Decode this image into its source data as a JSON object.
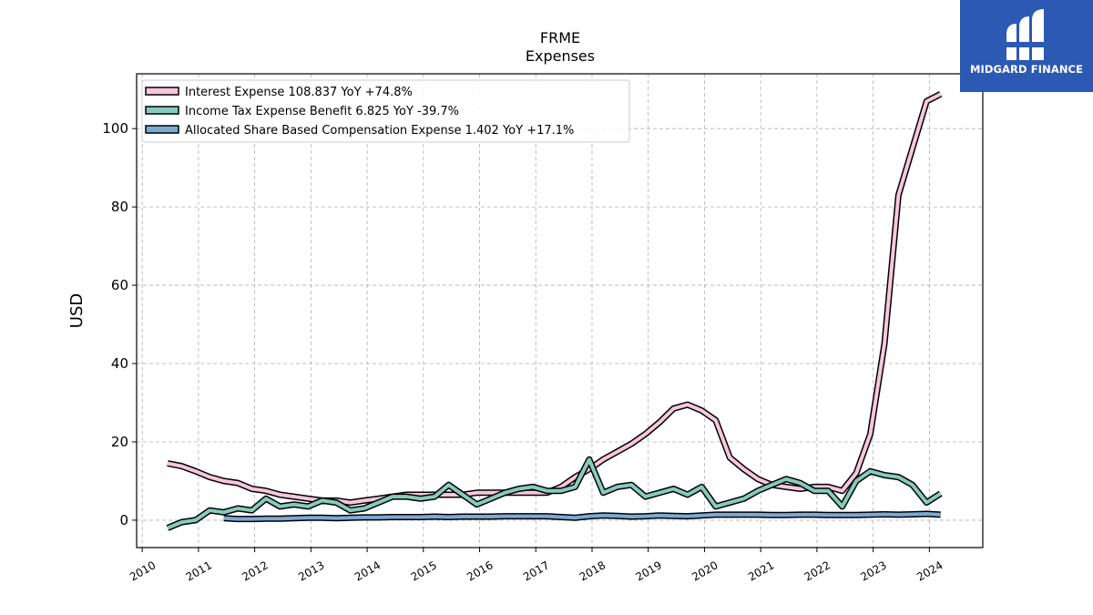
{
  "chart_data": {
    "type": "line",
    "title": "FRME",
    "subtitle": "Expenses",
    "xlabel": "",
    "ylabel": "USD",
    "xlim": [
      2009.9,
      2024.95
    ],
    "ylim": [
      -7,
      114
    ],
    "x_ticks": [
      "2010",
      "2011",
      "2012",
      "2013",
      "2014",
      "2015",
      "2016",
      "2017",
      "2018",
      "2019",
      "2020",
      "2021",
      "2022",
      "2023",
      "2024"
    ],
    "y_ticks": [
      0,
      20,
      40,
      60,
      80,
      100
    ],
    "grid": true,
    "legend_position": "top-left",
    "series": [
      {
        "name": "Interest Expense",
        "legend": "Interest Expense  108.837 YoY +74.8%",
        "color": "#f9c6dc",
        "x": [
          2010.45,
          2010.7,
          2010.95,
          2011.2,
          2011.45,
          2011.7,
          2011.95,
          2012.2,
          2012.45,
          2012.7,
          2012.95,
          2013.2,
          2013.45,
          2013.7,
          2013.95,
          2014.2,
          2014.45,
          2014.7,
          2014.95,
          2015.2,
          2015.45,
          2015.7,
          2015.95,
          2016.2,
          2016.45,
          2016.7,
          2016.95,
          2017.2,
          2017.45,
          2017.7,
          2017.95,
          2018.2,
          2018.45,
          2018.7,
          2018.95,
          2019.2,
          2019.45,
          2019.7,
          2019.95,
          2020.2,
          2020.45,
          2020.7,
          2020.95,
          2021.2,
          2021.45,
          2021.7,
          2021.95,
          2022.2,
          2022.45,
          2022.7,
          2022.95,
          2023.2,
          2023.45,
          2023.7,
          2023.95,
          2024.2
        ],
        "values": [
          14.5,
          13.8,
          12.5,
          11,
          10,
          9.5,
          8,
          7.5,
          6.5,
          6,
          5.5,
          5,
          5,
          4.5,
          5,
          5.5,
          6,
          6.5,
          6.5,
          6.5,
          6.5,
          6.5,
          7,
          7,
          7,
          7,
          7,
          7,
          8.5,
          11,
          13,
          15.5,
          17.5,
          19.5,
          22,
          25,
          28.5,
          29.5,
          28,
          25.5,
          16,
          13,
          10.5,
          9,
          8.5,
          8,
          8.5,
          8.5,
          7.5,
          12,
          22,
          45,
          83,
          95,
          107,
          108.8
        ]
      },
      {
        "name": "Income Tax Expense Benefit",
        "legend": "Income Tax Expense Benefit  6.825 YoY -39.7%",
        "color": "#86cbbb",
        "x": [
          2010.45,
          2010.7,
          2010.95,
          2011.2,
          2011.45,
          2011.7,
          2011.95,
          2012.2,
          2012.45,
          2012.7,
          2012.95,
          2013.2,
          2013.45,
          2013.7,
          2013.95,
          2014.2,
          2014.45,
          2014.7,
          2014.95,
          2015.2,
          2015.45,
          2015.7,
          2015.95,
          2016.2,
          2016.45,
          2016.7,
          2016.95,
          2017.2,
          2017.45,
          2017.7,
          2017.95,
          2018.2,
          2018.45,
          2018.7,
          2018.95,
          2019.2,
          2019.45,
          2019.7,
          2019.95,
          2020.2,
          2020.45,
          2020.7,
          2020.95,
          2021.2,
          2021.45,
          2021.7,
          2021.95,
          2022.2,
          2022.45,
          2022.7,
          2022.95,
          2023.2,
          2023.45,
          2023.7,
          2023.95,
          2024.2
        ],
        "values": [
          -2,
          -0.5,
          0,
          2.5,
          2,
          3,
          2.5,
          5.5,
          3.5,
          4,
          3.5,
          5,
          4.5,
          2.5,
          3,
          4.5,
          6,
          6,
          5.5,
          6,
          9,
          6.5,
          4,
          5.5,
          7,
          8,
          8.5,
          7.5,
          7.5,
          8.5,
          15.5,
          7,
          8.5,
          9,
          6,
          7,
          8,
          6.5,
          8.5,
          3.5,
          4.5,
          5.5,
          7.5,
          9,
          10.5,
          9.5,
          7.5,
          7.5,
          3.5,
          10,
          12.5,
          11.5,
          11,
          9,
          4.5,
          6.8
        ]
      },
      {
        "name": "Allocated Share Based Compensation Expense",
        "legend": "Allocated Share Based Compensation Expense  1.402 YoY +17.1%",
        "color": "#7aaad4",
        "x": [
          2011.45,
          2011.7,
          2011.95,
          2012.2,
          2012.45,
          2012.7,
          2012.95,
          2013.2,
          2013.45,
          2013.7,
          2013.95,
          2014.2,
          2014.45,
          2014.7,
          2014.95,
          2015.2,
          2015.45,
          2015.7,
          2015.95,
          2016.2,
          2016.45,
          2016.7,
          2016.95,
          2017.2,
          2017.45,
          2017.7,
          2017.95,
          2018.2,
          2018.45,
          2018.7,
          2018.95,
          2019.2,
          2019.45,
          2019.7,
          2019.95,
          2020.2,
          2020.45,
          2020.7,
          2020.95,
          2021.2,
          2021.45,
          2021.7,
          2021.95,
          2022.2,
          2022.45,
          2022.7,
          2022.95,
          2023.2,
          2023.45,
          2023.7,
          2023.95,
          2024.2
        ],
        "values": [
          0.5,
          0.3,
          0.3,
          0.4,
          0.4,
          0.5,
          0.6,
          0.6,
          0.5,
          0.6,
          0.7,
          0.7,
          0.8,
          0.8,
          0.8,
          0.9,
          0.8,
          0.9,
          0.9,
          0.9,
          1,
          1,
          1,
          1,
          0.8,
          0.6,
          1,
          1.2,
          1.1,
          0.9,
          1,
          1.2,
          1.1,
          1,
          1.2,
          1.4,
          1.4,
          1.4,
          1.4,
          1.3,
          1.3,
          1.4,
          1.4,
          1.3,
          1.3,
          1.3,
          1.4,
          1.5,
          1.4,
          1.5,
          1.6,
          1.4
        ]
      }
    ]
  },
  "brand": {
    "name": "MIDGARD FINANCE",
    "color": "#2b59b3"
  }
}
